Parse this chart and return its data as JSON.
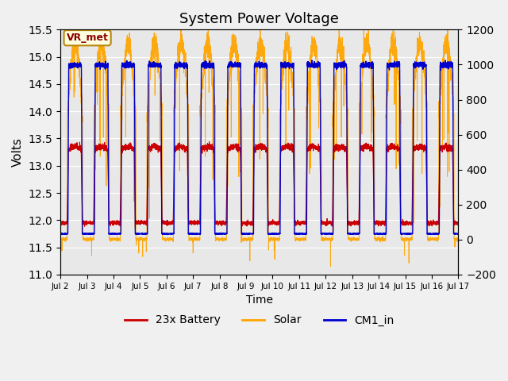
{
  "title": "System Power Voltage",
  "xlabel": "Time",
  "ylabel": "Volts",
  "annotation_text": "VR_met",
  "left_ylim": [
    11.0,
    15.5
  ],
  "right_ylim": [
    -200,
    1200
  ],
  "left_yticks": [
    11.0,
    11.5,
    12.0,
    12.5,
    13.0,
    13.5,
    14.0,
    14.5,
    15.0,
    15.5
  ],
  "right_yticks": [
    -200,
    0,
    200,
    400,
    600,
    800,
    1000,
    1200
  ],
  "xtick_labels": [
    "Jul 2",
    "Jul 3",
    "Jul 4",
    "Jul 5",
    "Jul 6",
    "Jul 7",
    "Jul 8",
    "Jul 9",
    "Jul 10",
    "Jul 11",
    "Jul 12",
    "Jul 13",
    "Jul 14",
    "Jul 15",
    "Jul 16",
    "Jul 17"
  ],
  "xtick_positions": [
    0,
    1,
    2,
    3,
    4,
    5,
    6,
    7,
    8,
    9,
    10,
    11,
    12,
    13,
    14,
    15
  ],
  "color_battery": "#cc0000",
  "color_solar": "#ffa500",
  "color_cm1": "#0000cc",
  "legend_labels": [
    "23x Battery",
    "Solar",
    "CM1_in"
  ],
  "background_color": "#e8e8e8",
  "grid_color": "#ffffff",
  "title_fontsize": 13,
  "annotation_fontsize": 9,
  "n_days": 15
}
